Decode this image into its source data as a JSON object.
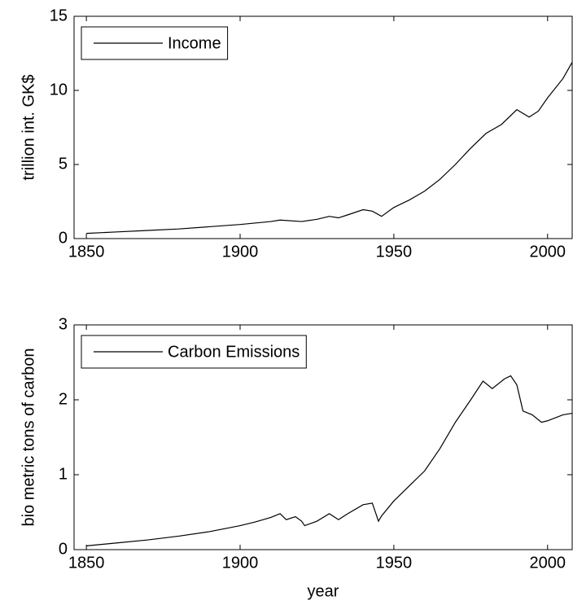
{
  "chart_data": [
    {
      "type": "line",
      "ylabel": "trillion int. GK$",
      "x": [
        1850,
        1860,
        1870,
        1880,
        1890,
        1900,
        1910,
        1913,
        1920,
        1925,
        1929,
        1932,
        1935,
        1940,
        1943,
        1946,
        1950,
        1955,
        1960,
        1965,
        1970,
        1975,
        1980,
        1985,
        1990,
        1994,
        1997,
        2000,
        2005,
        2008
      ],
      "series": [
        {
          "name": "Income",
          "color": "#000000",
          "values": [
            0.35,
            0.45,
            0.55,
            0.65,
            0.8,
            0.95,
            1.15,
            1.25,
            1.15,
            1.3,
            1.5,
            1.4,
            1.6,
            1.95,
            1.85,
            1.5,
            2.1,
            2.6,
            3.2,
            4.0,
            5.0,
            6.1,
            7.1,
            7.7,
            8.7,
            8.2,
            8.6,
            9.5,
            10.8,
            11.9
          ]
        }
      ],
      "xlim": [
        1846,
        2008
      ],
      "ylim": [
        0,
        15
      ],
      "xticks": [
        1850,
        1900,
        1950,
        2000
      ],
      "yticks": [
        0,
        5,
        10,
        15
      ],
      "legend": "upper left"
    },
    {
      "type": "line",
      "ylabel": "bio metric tons of carbon",
      "xlabel": "year",
      "x": [
        1850,
        1860,
        1870,
        1880,
        1890,
        1900,
        1905,
        1910,
        1913,
        1915,
        1918,
        1920,
        1921,
        1925,
        1929,
        1932,
        1935,
        1940,
        1943,
        1945,
        1946,
        1950,
        1955,
        1960,
        1965,
        1970,
        1975,
        1979,
        1982,
        1986,
        1988,
        1990,
        1992,
        1995,
        1998,
        2000,
        2005,
        2008
      ],
      "series": [
        {
          "name": "Carbon Emissions",
          "color": "#000000",
          "values": [
            0.05,
            0.09,
            0.13,
            0.18,
            0.24,
            0.32,
            0.37,
            0.43,
            0.48,
            0.4,
            0.44,
            0.38,
            0.32,
            0.38,
            0.48,
            0.4,
            0.48,
            0.6,
            0.62,
            0.38,
            0.45,
            0.65,
            0.85,
            1.05,
            1.35,
            1.7,
            2.0,
            2.25,
            2.15,
            2.28,
            2.32,
            2.2,
            1.85,
            1.8,
            1.7,
            1.72,
            1.8,
            1.82
          ]
        }
      ],
      "xlim": [
        1846,
        2008
      ],
      "ylim": [
        0,
        3
      ],
      "xticks": [
        1850,
        1900,
        1950,
        2000
      ],
      "yticks": [
        0,
        1,
        2,
        3
      ],
      "legend": "upper left"
    }
  ]
}
